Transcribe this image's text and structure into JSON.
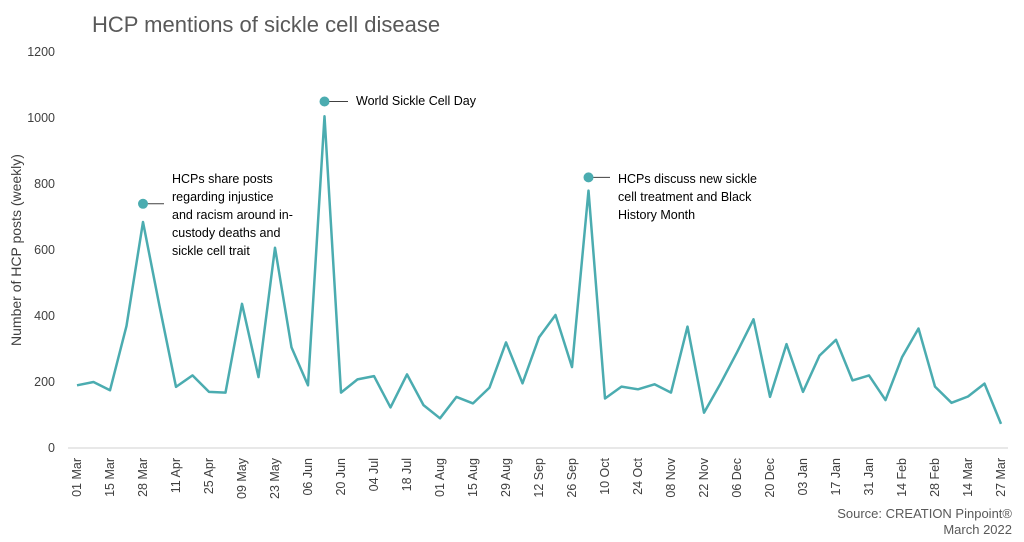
{
  "chart_data": {
    "type": "line",
    "title": "HCP mentions of sickle cell disease",
    "ylabel": "Number of HCP posts (weekly)",
    "xlabel": "",
    "ylim": [
      0,
      1200
    ],
    "yticks": [
      0,
      200,
      400,
      600,
      800,
      1000,
      1200
    ],
    "grid": false,
    "legend": "none",
    "line_color": "#4BACB0",
    "x_tick_labels": [
      "01 Mar",
      "15 Mar",
      "28 Mar",
      "11 Apr",
      "25 Apr",
      "09 May",
      "23 May",
      "06 Jun",
      "20 Jun",
      "04 Jul",
      "18 Jul",
      "01 Aug",
      "15 Aug",
      "29 Aug",
      "12 Sep",
      "26 Sep",
      "10 Oct",
      "24 Oct",
      "08 Nov",
      "22 Nov",
      "06 Dec",
      "20 Dec",
      "03 Jan",
      "17 Jan",
      "31 Jan",
      "14 Feb",
      "28 Feb",
      "14 Mar",
      "27 Mar"
    ],
    "values": [
      190,
      200,
      175,
      370,
      685,
      430,
      185,
      220,
      170,
      168,
      437,
      215,
      607,
      305,
      190,
      1005,
      168,
      208,
      218,
      123,
      223,
      130,
      90,
      155,
      135,
      183,
      320,
      196,
      335,
      403,
      245,
      780,
      150,
      186,
      178,
      193,
      168,
      368,
      107,
      195,
      290,
      390,
      155,
      315,
      170,
      280,
      328,
      205,
      220,
      145,
      275,
      362,
      186,
      137,
      156,
      195,
      73
    ],
    "annotations": [
      {
        "text": "World Sickle Cell Day",
        "lines": [
          "World Sickle Cell Day"
        ],
        "marker_y": 1050
      },
      {
        "text": "HCPs share posts regarding injustice and racism around in-custody deaths and sickle cell trait",
        "lines": [
          "HCPs share posts",
          "regarding injustice",
          "and racism around in-",
          "custody deaths and",
          "sickle cell trait"
        ],
        "marker_y": 740
      },
      {
        "text": "HCPs discuss new sickle cell treatment and Black History Month",
        "lines": [
          "HCPs discuss new sickle",
          "cell treatment and Black",
          "History Month"
        ],
        "marker_y": 820
      }
    ]
  },
  "source": {
    "line1": "Source: CREATION Pinpoint®",
    "line2": "March 2022"
  }
}
